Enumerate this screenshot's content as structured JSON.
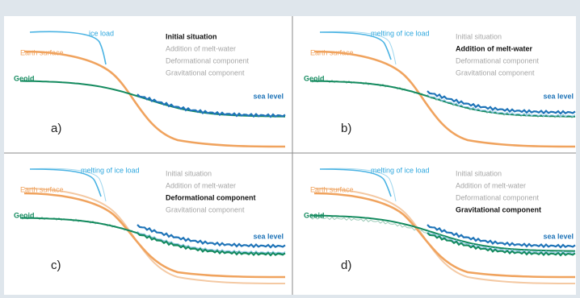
{
  "panels": [
    {
      "letter": "a)",
      "ice_label": "ice load",
      "earth_label": "Earth surface",
      "geoid_label": "Geoid",
      "sea_label": "sea level",
      "legend": [
        {
          "text": "Initial situation",
          "bold": true
        },
        {
          "text": "Addition of melt-water",
          "bold": false
        },
        {
          "text": "Deformational component",
          "bold": false
        },
        {
          "text": "Gravitational component",
          "bold": false
        }
      ]
    },
    {
      "letter": "b)",
      "ice_label": "melting of ice load",
      "earth_label": "Earth surface",
      "geoid_label": "Geoid",
      "sea_label": "sea level",
      "legend": [
        {
          "text": "Initial situation",
          "bold": false
        },
        {
          "text": "Addition of melt-water",
          "bold": true
        },
        {
          "text": "Deformational component",
          "bold": false
        },
        {
          "text": "Gravitational component",
          "bold": false
        }
      ]
    },
    {
      "letter": "c)",
      "ice_label": "melting of ice load",
      "earth_label": "Earth surface",
      "geoid_label": "Geoid",
      "sea_label": "sea level",
      "legend": [
        {
          "text": "Initial situation",
          "bold": false
        },
        {
          "text": "Addition of melt-water",
          "bold": false
        },
        {
          "text": "Deformational component",
          "bold": true
        },
        {
          "text": "Gravitational component",
          "bold": false
        }
      ]
    },
    {
      "letter": "d)",
      "ice_label": "melting of ice load",
      "earth_label": "Earth surface",
      "geoid_label": "Geoid",
      "sea_label": "sea level",
      "legend": [
        {
          "text": "Initial situation",
          "bold": false
        },
        {
          "text": "Addition of melt-water",
          "bold": false
        },
        {
          "text": "Deformational component",
          "bold": false
        },
        {
          "text": "Gravitational component",
          "bold": true
        }
      ]
    }
  ]
}
